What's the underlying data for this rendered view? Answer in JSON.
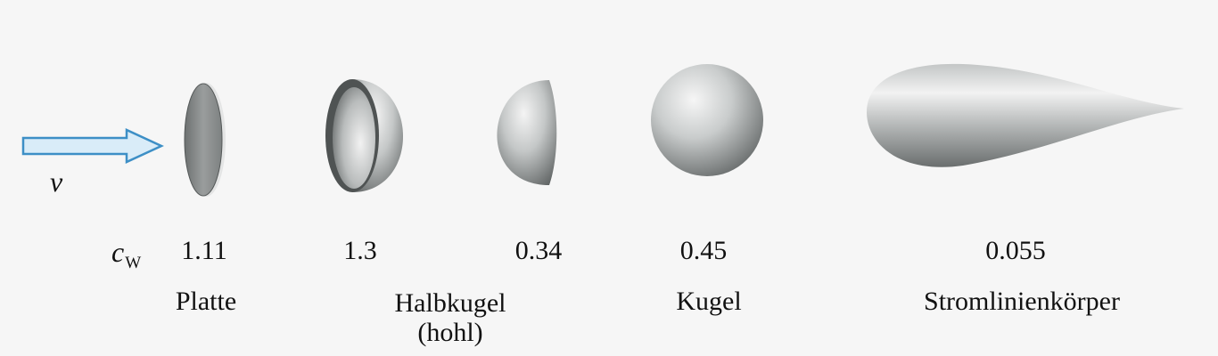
{
  "velocity_label": "v",
  "coefficient_label": {
    "symbol": "c",
    "subscript": "W"
  },
  "bodies": [
    {
      "name": "Platte",
      "name_line2": "",
      "cw": "1.11"
    },
    {
      "name": "Halbkugel",
      "name_line2": "(hohl)",
      "cw": "1.3"
    },
    {
      "name": "",
      "name_line2": "",
      "cw": "0.34"
    },
    {
      "name": "Kugel",
      "name_line2": "",
      "cw": "0.45"
    },
    {
      "name": "Stromlinienkörper",
      "name_line2": "",
      "cw": "0.055"
    }
  ],
  "colors": {
    "arrow_fill": "#d9ecf8",
    "arrow_stroke": "#3d8fc6",
    "shape_light": "#f4f4f4",
    "shape_mid": "#b9bcbc",
    "shape_dark": "#5d6161"
  }
}
